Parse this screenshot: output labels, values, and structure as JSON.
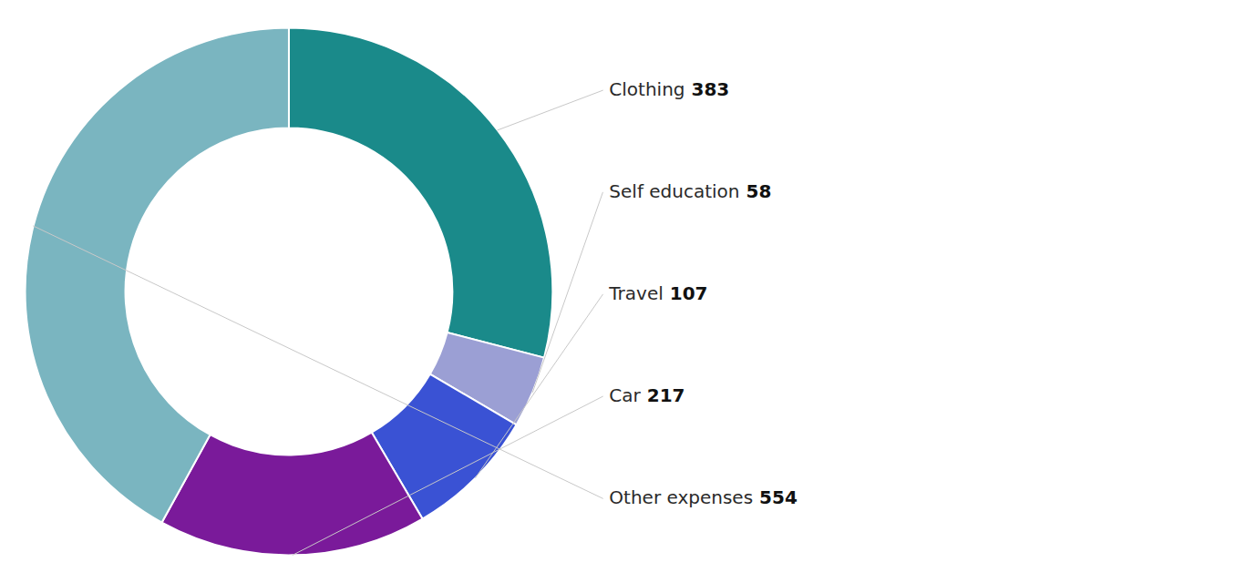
{
  "chart_data": {
    "type": "pie",
    "categories": [
      "Clothing",
      "Self education",
      "Travel",
      "Car",
      "Other expenses"
    ],
    "values": [
      383,
      58,
      107,
      217,
      554
    ],
    "colors": [
      "#1a8a8a",
      "#9b9fd4",
      "#3a52d4",
      "#7a1a9a",
      "#7ab5c0"
    ],
    "data_labels": true
  }
}
